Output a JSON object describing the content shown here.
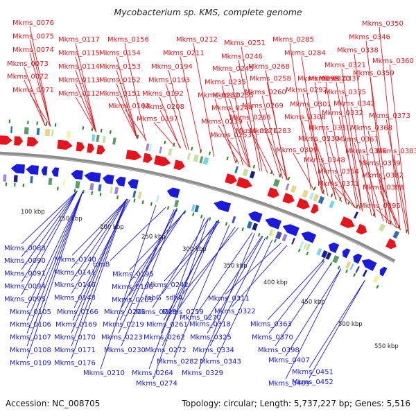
{
  "map": {
    "title": "Mycobacterium sp. KMS, complete genome",
    "accession": "Accession: NC_008705",
    "summary": "Topology: circular; Length: 5,737,227 bp; Genes: 5,516",
    "colors": {
      "forward": "#e8141b",
      "reverse": "#1a1adb",
      "backbone": "#8c8c8c",
      "tick": "#1f8a1f"
    }
  },
  "scale_labels": [
    "100 kbp",
    "150 kbp",
    "200 kbp",
    "250 kbp",
    "300 kbp",
    "350 kbp",
    "400 kbp",
    "450 kbp",
    "500 kbp",
    "550 kbp"
  ],
  "forward_genes": [
    "Mkms_0076",
    "Mkms_0075",
    "Mkms_0074",
    "Mkms_0073",
    "Mkms_0072",
    "Mkms_0071",
    "Mkms_0117",
    "Mkms_0115",
    "Mkms_0114",
    "Mkms_0113",
    "Mkms_0112",
    "Mkms_0156",
    "Mkms_0154",
    "Mkms_0153",
    "Mkms_0152",
    "Mkms_0151",
    "Mkms_0163",
    "Mkms_0212",
    "Mkms_0211",
    "Mkms_0194",
    "Mkms_0193",
    "Mkms_0192",
    "Mkms_0208",
    "Mkms_0197",
    "Mkms_0251",
    "Mkms_0246",
    "Mkms_0245",
    "Mkms_0235",
    "Mkms_0232",
    "Mkms_0255",
    "Mkms_0244",
    "Mkms_0239",
    "Mkms_0253",
    "Mkms_0285",
    "Mkms_0284",
    "Mkms_0268",
    "Mkms_0258",
    "Mkms_0260",
    "Mkms_0269",
    "Mkms_0266",
    "Mkms_0271",
    "Mkms_0283",
    "Mkms_0299",
    "Mkms_0292",
    "Mkms_0301",
    "Mkms_0308",
    "Mkms_0309",
    "Mkms_0331",
    "Mkms_0330",
    "Mkms_0350",
    "Mkms_0346",
    "Mkms_0338",
    "Mkms_0321",
    "Mkms_0320",
    "Mkms_0337",
    "Mkms_0335",
    "Mkms_0342",
    "Mkms_0332",
    "Mkms_0360",
    "Mkms_0359",
    "Mkms_0373",
    "Mkms_0368",
    "Mkms_0367",
    "Mkms_0366",
    "Mkms_0348",
    "Mkms_0364",
    "Mkms_0371",
    "Mkms_0383",
    "Mkms_0379",
    "Mkms_0382",
    "Mkms_0388",
    "Mkms_0395"
  ],
  "reverse_genes": [
    "Mkms_0088",
    "Mkms_0090",
    "Mkms_0091",
    "Mkms_0094",
    "Mkms_0095",
    "Mkms_0105",
    "Mkms_0106",
    "Mkms_0107",
    "Mkms_0108",
    "Mkms_0109",
    "Mkms_0140",
    "Mkms_0141",
    "Mkms_0146",
    "Mkms_0148",
    "Mkms_0166",
    "Mkms_0169",
    "Mkms_0170",
    "Mkms_0171",
    "Mkms_0176",
    "trmB",
    "Mkms_0195",
    "Mkms_0196",
    "Mkms_0209",
    "Mkms_0215",
    "Mkms_0228",
    "Mkms_0219",
    "Mkms_0223",
    "Mkms_0230",
    "Mkms_0210",
    "Mkms_0242",
    "fabG",
    "sdhA",
    "Mkms_0259",
    "Mkms_0261",
    "Mkms_0262",
    "Mkms_0272",
    "Mkms_0282",
    "Mkms_0264",
    "Mkms_0274",
    "Mkms_0311",
    "Mkms_0322",
    "Mkms_0270",
    "Mkms_0318",
    "Mkms_0325",
    "Mkms_0334",
    "Mkms_0343",
    "Mkms_0329",
    "Mkms_0363",
    "Mkms_0370",
    "Mkms_0398",
    "Mkms_0407",
    "Mkms_0451",
    "Mkms_0409",
    "Mkms_0452"
  ]
}
